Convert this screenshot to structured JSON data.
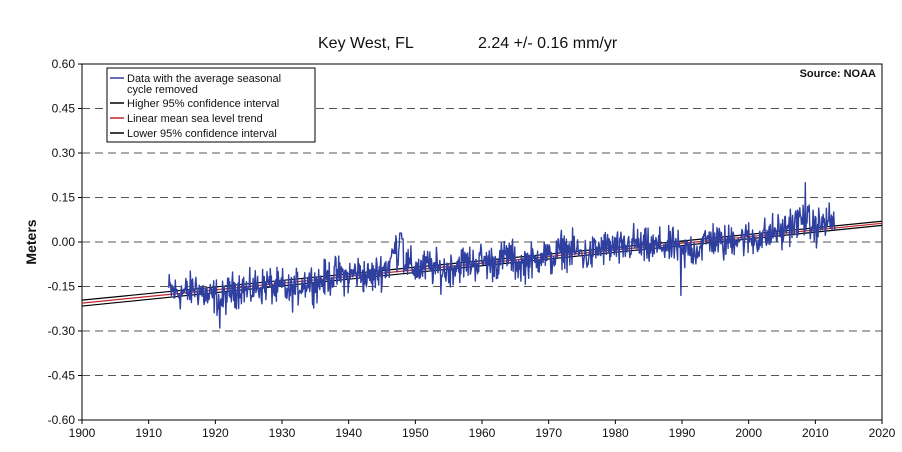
{
  "chart_data": {
    "type": "line",
    "title": "Key West, FL",
    "subtitle": "2.24 +/- 0.16 mm/yr",
    "source": "Source: NOAA",
    "xlabel": "",
    "ylabel": "Meters",
    "xlim": [
      1900,
      2020
    ],
    "ylim": [
      -0.6,
      0.6
    ],
    "x_ticks": [
      1900,
      1910,
      1920,
      1930,
      1940,
      1950,
      1960,
      1970,
      1980,
      1990,
      2000,
      2010,
      2020
    ],
    "y_ticks": [
      0.6,
      0.45,
      0.3,
      0.15,
      0.0,
      -0.15,
      -0.3,
      -0.45,
      -0.6
    ],
    "y_tick_labels": [
      "0.60",
      "0.45",
      "0.30",
      "0.15",
      "0.00",
      "-0.15",
      "-0.30",
      "-0.45",
      "-0.60"
    ],
    "grid": "horizontal dashed",
    "legend_position": "top-left",
    "series": [
      {
        "name": "Data with the average seasonal cycle removed",
        "color": "#2f3fa0",
        "annual_mean": {
          "x": [
            1913,
            1914,
            1915,
            1916,
            1917,
            1918,
            1919,
            1920,
            1921,
            1922,
            1923,
            1924,
            1925,
            1926,
            1927,
            1928,
            1929,
            1930,
            1931,
            1932,
            1933,
            1934,
            1935,
            1936,
            1937,
            1938,
            1939,
            1940,
            1941,
            1942,
            1943,
            1944,
            1945,
            1946,
            1947,
            1948,
            1949,
            1950,
            1951,
            1952,
            1953,
            1954,
            1955,
            1956,
            1957,
            1958,
            1959,
            1960,
            1961,
            1962,
            1963,
            1964,
            1965,
            1966,
            1967,
            1968,
            1969,
            1970,
            1971,
            1972,
            1973,
            1974,
            1975,
            1976,
            1977,
            1978,
            1979,
            1980,
            1981,
            1982,
            1983,
            1984,
            1985,
            1986,
            1987,
            1988,
            1989,
            1990,
            1991,
            1992,
            1993,
            1994,
            1995,
            1996,
            1997,
            1998,
            1999,
            2000,
            2001,
            2002,
            2003,
            2004,
            2005,
            2006,
            2007,
            2008,
            2009,
            2010,
            2011,
            2012
          ],
          "y": [
            -0.16,
            -0.17,
            -0.17,
            -0.17,
            -0.15,
            -0.17,
            -0.19,
            -0.18,
            -0.2,
            -0.17,
            -0.16,
            -0.15,
            -0.17,
            -0.15,
            -0.15,
            -0.14,
            -0.16,
            -0.15,
            -0.17,
            -0.16,
            -0.14,
            -0.13,
            -0.14,
            -0.13,
            -0.12,
            -0.11,
            -0.11,
            -0.12,
            -0.1,
            -0.11,
            -0.12,
            -0.11,
            -0.09,
            -0.08,
            -0.02,
            -0.05,
            -0.08,
            -0.09,
            -0.09,
            -0.08,
            -0.09,
            -0.1,
            -0.09,
            -0.08,
            -0.07,
            -0.07,
            -0.07,
            -0.06,
            -0.07,
            -0.07,
            -0.06,
            -0.04,
            -0.07,
            -0.08,
            -0.06,
            -0.07,
            -0.03,
            -0.06,
            -0.05,
            -0.02,
            -0.03,
            -0.03,
            -0.04,
            -0.05,
            -0.03,
            -0.02,
            -0.02,
            -0.02,
            -0.03,
            -0.01,
            0.0,
            -0.02,
            -0.02,
            -0.02,
            -0.01,
            -0.02,
            -0.01,
            -0.05,
            -0.02,
            -0.03,
            -0.01,
            0.01,
            0.01,
            -0.01,
            0.0,
            0.02,
            0.01,
            0.01,
            0.01,
            0.02,
            0.02,
            0.04,
            0.03,
            0.06,
            0.06,
            0.08,
            0.06,
            0.05,
            0.06,
            0.07
          ]
        }
      },
      {
        "name": "Higher 95% confidence interval",
        "color": "#000000",
        "y_1900": -0.196,
        "y_2020": 0.07
      },
      {
        "name": "Linear mean sea level trend",
        "color": "#c0262c",
        "y_1900": -0.206,
        "y_2020": 0.063
      },
      {
        "name": "Lower 95% confidence interval",
        "color": "#000000",
        "y_1900": -0.216,
        "y_2020": 0.056
      }
    ],
    "legend_entries": [
      {
        "line1": "Data with the average seasonal",
        "line2": "cycle removed",
        "color": "#2f3fa0"
      },
      {
        "line1": "Higher 95% confidence interval",
        "color": "#000000"
      },
      {
        "line1": "Linear mean sea level trend",
        "color": "#c0262c"
      },
      {
        "line1": "Lower 95% confidence interval",
        "color": "#000000"
      }
    ]
  }
}
